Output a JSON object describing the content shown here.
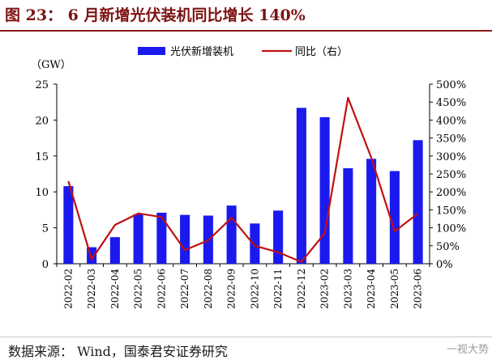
{
  "title": "图 23： 6 月新增光伏装机同比增长 140%",
  "source": "数据来源：  Wind，国泰君安证券研究",
  "watermark": "一视大势",
  "chart_data": {
    "type": "bar",
    "categories": [
      "2022-02",
      "2022-03",
      "2022-04",
      "2022-05",
      "2022-06",
      "2022-07",
      "2022-08",
      "2022-09",
      "2022-10",
      "2022-11",
      "2022-12",
      "2023-02",
      "2023-03",
      "2023-04",
      "2023-05",
      "2023-06"
    ],
    "series": [
      {
        "name": "光伏新增装机",
        "type": "bar",
        "axis": "left",
        "color": "#1a1aee",
        "values": [
          10.8,
          2.3,
          3.7,
          6.9,
          7.1,
          6.8,
          6.7,
          8.1,
          5.6,
          7.4,
          21.7,
          20.4,
          13.3,
          14.6,
          12.9,
          17.2
        ]
      },
      {
        "name": "同比（右）",
        "type": "line",
        "axis": "right",
        "color": "#c01010",
        "values": [
          230,
          12,
          108,
          140,
          130,
          38,
          65,
          128,
          50,
          32,
          5,
          85,
          462,
          295,
          90,
          140
        ]
      }
    ],
    "left_axis": {
      "unit": "（GW）",
      "min": 0,
      "max": 25,
      "ticks": [
        "0",
        "5",
        "10",
        "15",
        "20",
        "25"
      ]
    },
    "right_axis": {
      "min": 0,
      "max": 500,
      "ticks": [
        "0%",
        "50%",
        "100%",
        "150%",
        "200%",
        "250%",
        "300%",
        "350%",
        "400%",
        "450%",
        "500%"
      ]
    },
    "legend": {
      "position": "top"
    },
    "grid": false
  }
}
